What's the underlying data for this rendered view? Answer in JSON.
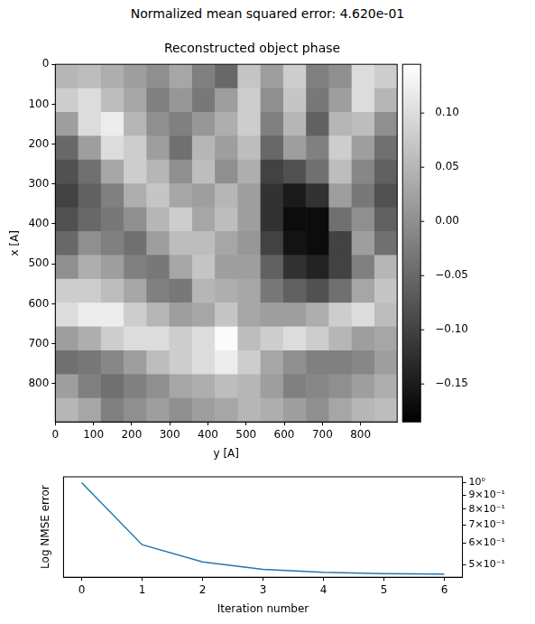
{
  "title": "Normalized mean squared error: 4.620e-01",
  "chart_data": [
    {
      "type": "heatmap",
      "title": "Reconstructed object phase",
      "x_label": "y [A]",
      "y_label": "x [A]",
      "xlim": [
        0,
        896
      ],
      "xticks": [
        0,
        100,
        200,
        300,
        400,
        500,
        600,
        700,
        800
      ],
      "ylim": [
        896,
        0
      ],
      "yticks": [
        0,
        100,
        200,
        300,
        400,
        500,
        600,
        700,
        800
      ],
      "grid": false,
      "cells": [
        [
          0.05,
          0.06,
          0.04,
          0.02,
          0.0,
          0.03,
          -0.02,
          -0.05,
          0.07,
          0.02,
          0.08,
          -0.02,
          0.0,
          0.1,
          0.08
        ],
        [
          0.08,
          0.1,
          0.06,
          0.03,
          -0.02,
          0.01,
          -0.03,
          0.02,
          0.08,
          0.0,
          0.07,
          -0.03,
          0.02,
          0.1,
          0.05
        ],
        [
          0.02,
          0.1,
          0.12,
          0.05,
          0.0,
          -0.02,
          0.01,
          0.04,
          0.08,
          -0.02,
          0.05,
          -0.06,
          0.05,
          0.06,
          0.0
        ],
        [
          -0.05,
          0.02,
          0.1,
          0.08,
          0.02,
          -0.04,
          0.05,
          0.02,
          0.06,
          -0.05,
          0.02,
          -0.02,
          0.08,
          0.02,
          -0.04
        ],
        [
          -0.08,
          -0.04,
          0.03,
          0.08,
          0.05,
          0.0,
          0.06,
          0.0,
          0.04,
          -0.1,
          -0.08,
          -0.04,
          0.06,
          -0.01,
          -0.06
        ],
        [
          -0.1,
          -0.06,
          -0.02,
          0.04,
          0.07,
          0.03,
          0.02,
          0.05,
          0.02,
          -0.12,
          -0.15,
          -0.12,
          0.02,
          -0.03,
          -0.08
        ],
        [
          -0.08,
          -0.05,
          -0.03,
          0.0,
          0.05,
          0.08,
          0.03,
          0.06,
          0.02,
          -0.12,
          -0.17,
          -0.17,
          -0.04,
          0.0,
          -0.06
        ],
        [
          -0.05,
          0.0,
          -0.02,
          -0.04,
          0.02,
          0.06,
          0.06,
          0.03,
          0.01,
          -0.1,
          -0.16,
          -0.17,
          -0.1,
          0.02,
          -0.04
        ],
        [
          0.0,
          0.04,
          0.02,
          -0.02,
          -0.03,
          0.03,
          0.07,
          0.02,
          0.02,
          -0.06,
          -0.12,
          -0.14,
          -0.1,
          -0.02,
          0.05
        ],
        [
          0.08,
          0.08,
          0.06,
          0.03,
          -0.02,
          -0.03,
          0.05,
          0.04,
          0.03,
          -0.03,
          -0.06,
          -0.08,
          -0.04,
          0.03,
          0.07
        ],
        [
          0.1,
          0.12,
          0.12,
          0.08,
          0.05,
          0.02,
          0.03,
          0.07,
          0.03,
          0.02,
          0.02,
          0.04,
          0.08,
          0.1,
          0.06
        ],
        [
          0.02,
          0.04,
          0.08,
          0.1,
          0.1,
          0.08,
          0.1,
          0.14,
          0.06,
          0.08,
          0.1,
          0.08,
          0.05,
          0.02,
          0.03
        ],
        [
          -0.04,
          -0.03,
          -0.01,
          0.02,
          0.06,
          0.08,
          0.1,
          0.12,
          0.08,
          0.03,
          0.0,
          -0.02,
          -0.02,
          -0.01,
          0.02
        ],
        [
          0.02,
          -0.02,
          -0.04,
          -0.02,
          0.0,
          0.03,
          0.04,
          0.06,
          0.05,
          0.02,
          -0.02,
          -0.01,
          0.0,
          0.02,
          0.04
        ],
        [
          0.05,
          0.03,
          -0.02,
          0.0,
          0.02,
          0.0,
          0.02,
          0.03,
          0.05,
          0.04,
          0.02,
          0.0,
          0.03,
          0.05,
          0.06
        ]
      ],
      "colorbar": {
        "range": [
          -0.185,
          0.145
        ],
        "ticks": [
          {
            "value": -0.15,
            "label": "−0.15"
          },
          {
            "value": -0.1,
            "label": "−0.10"
          },
          {
            "value": -0.05,
            "label": "−0.05"
          },
          {
            "value": 0,
            "label": "0.00"
          },
          {
            "value": 0.05,
            "label": "0.05"
          },
          {
            "value": 0.1,
            "label": "0.10"
          }
        ]
      }
    },
    {
      "type": "line",
      "x_label": "Iteration number",
      "y_label": "Log NMSE error",
      "x": [
        0,
        1,
        2,
        3,
        4,
        5,
        6
      ],
      "values": [
        1.0,
        0.592,
        0.512,
        0.481,
        0.469,
        0.464,
        0.462
      ],
      "color": "#1f77b4",
      "log": "y",
      "grid": false,
      "xlim": [
        -0.3,
        6.3
      ],
      "xticks": [
        0,
        1,
        2,
        3,
        4,
        5,
        6
      ],
      "ylim": [
        0.45,
        1.05
      ],
      "yticks": [
        {
          "value": 1,
          "label": "10⁰"
        },
        {
          "value": 0.9,
          "label": "9×10⁻¹"
        },
        {
          "value": 0.8,
          "label": "8×10⁻¹"
        },
        {
          "value": 0.7,
          "label": "7×10⁻¹"
        },
        {
          "value": 0.6,
          "label": "6×10⁻¹"
        },
        {
          "value": 0.5,
          "label": "5×10⁻¹"
        }
      ]
    }
  ]
}
